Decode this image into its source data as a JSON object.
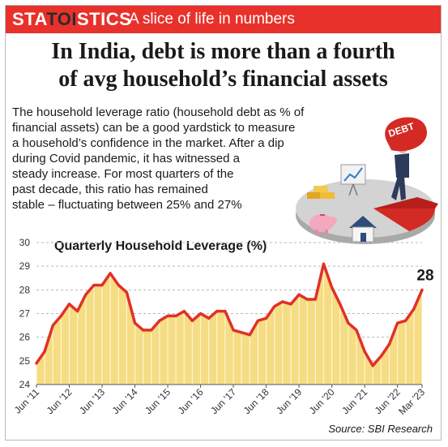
{
  "banner": {
    "brand_pre": "STA",
    "brand_mid": "TOI",
    "brand_post": "STICS",
    "tagline": "A slice of life in numbers"
  },
  "headline": {
    "line1": "In India, debt is more than a fourth",
    "line2": "of avg household’s financial assets"
  },
  "description": {
    "lines": [
      "The household leverage ratio (household debt as % of",
      "financial assets) can be a good yardstick to measure",
      "a household’s confidence in the market. After a dip",
      "during Covid pandemic, it has witnessed a",
      "steady increase. For most quarters of the",
      "past decade, this ratio has remained",
      "stable – fluctuating between 25% and 27%"
    ]
  },
  "illustration": {
    "bag_label": "DEBT"
  },
  "chart_data": {
    "type": "area",
    "title": "Quarterly Household Leverage (%)",
    "xlabel": "",
    "ylabel": "",
    "ylim": [
      24,
      30
    ],
    "yticks": [
      "24",
      "25",
      "26",
      "27",
      "28",
      "29",
      "30"
    ],
    "xticks": [
      "Jun '11",
      "Jun '12",
      "Jun '13",
      "Jun '14",
      "Jun '15",
      "Jun '16",
      "Jun '17",
      "Jun '18",
      "Jun '19",
      "Jun '20",
      "Jun '21",
      "Jun '22",
      "Mar '23"
    ],
    "series": [
      {
        "values": [
          24.9,
          25.4,
          26.5,
          26.9,
          27.4,
          27.1,
          27.8,
          28.2,
          28.2,
          28.7,
          28.2,
          27.9,
          26.6,
          26.3,
          26.3,
          26.7,
          26.9,
          26.9,
          27.1,
          26.7,
          27.0,
          26.8,
          27.1,
          27.1,
          26.3,
          26.2,
          26.1,
          26.7,
          26.8,
          27.3,
          27.5,
          27.4,
          27.8,
          27.6,
          27.6,
          29.1,
          28.1,
          27.4,
          26.6,
          26.3,
          25.4,
          24.8,
          25.2,
          25.7,
          26.6,
          26.7,
          27.2,
          28.0
        ]
      }
    ],
    "last_value_label": "28",
    "colors": {
      "line": "#e03127",
      "fill": "#f6dc82",
      "grid": "#b8b8b8"
    }
  },
  "source": "Source: SBI Research"
}
